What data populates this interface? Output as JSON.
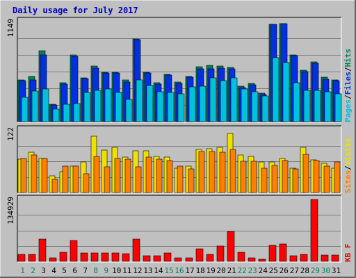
{
  "chart_data": [
    {
      "type": "bar",
      "title": "Daily usage for July 2017",
      "panel": "hits-files-pages",
      "categories": [
        "1",
        "2",
        "3",
        "4",
        "5",
        "6",
        "7",
        "8",
        "9",
        "10",
        "11",
        "12",
        "13",
        "14",
        "15",
        "16",
        "17",
        "18",
        "19",
        "20",
        "21",
        "22",
        "23",
        "24",
        "25",
        "26",
        "27",
        "28",
        "29",
        "30",
        "31"
      ],
      "ymax_label": "1149",
      "ylim": [
        0,
        1149
      ],
      "legend": [
        {
          "text": "Pages",
          "color": "#00c0e0"
        },
        {
          "text": "/",
          "color": "#000000"
        },
        {
          "text": "Files",
          "color": "#0030e0"
        },
        {
          "text": "/",
          "color": "#000000"
        },
        {
          "text": "Hits",
          "color": "#00805c"
        }
      ],
      "series": [
        {
          "name": "Hits",
          "color": "#00805c",
          "values": [
            480,
            515,
            815,
            200,
            450,
            765,
            505,
            640,
            565,
            565,
            480,
            947,
            568,
            448,
            545,
            455,
            520,
            630,
            645,
            640,
            620,
            410,
            438,
            325,
            1120,
            1125,
            768,
            590,
            686,
            510,
            480
          ]
        },
        {
          "name": "Files",
          "color": "#0030e0",
          "values": [
            468,
            480,
            765,
            188,
            430,
            750,
            492,
            613,
            557,
            555,
            455,
            938,
            558,
            432,
            535,
            440,
            508,
            610,
            605,
            615,
            610,
            394,
            425,
            315,
            1120,
            1125,
            758,
            575,
            670,
            490,
            470
          ]
        },
        {
          "name": "Pages",
          "color": "#00c0e0",
          "values": [
            278,
            350,
            372,
            140,
            200,
            208,
            332,
            362,
            379,
            339,
            254,
            475,
            417,
            347,
            332,
            320,
            398,
            410,
            500,
            473,
            505,
            373,
            340,
            296,
            732,
            680,
            450,
            358,
            357,
            343,
            320
          ]
        }
      ]
    },
    {
      "type": "bar",
      "panel": "visits-sites",
      "categories": [
        "1",
        "2",
        "3",
        "4",
        "5",
        "6",
        "7",
        "8",
        "9",
        "10",
        "11",
        "12",
        "13",
        "14",
        "15",
        "16",
        "17",
        "18",
        "19",
        "20",
        "21",
        "22",
        "23",
        "24",
        "25",
        "26",
        "27",
        "28",
        "29",
        "30",
        "31"
      ],
      "ymax_label": "122",
      "ylim": [
        0,
        122
      ],
      "legend": [
        {
          "text": "Sites",
          "color": "#ff8000"
        },
        {
          "text": "/",
          "color": "#000000"
        },
        {
          "text": "Visits",
          "color": "#f0e000"
        }
      ],
      "series": [
        {
          "name": "Visits",
          "color": "#f0e000",
          "values": [
            65,
            78,
            66,
            33,
            40,
            51,
            60,
            110,
            83,
            88,
            69,
            82,
            81,
            70,
            69,
            48,
            52,
            84,
            86,
            88,
            115,
            73,
            71,
            59,
            59,
            67,
            47,
            88,
            64,
            57,
            48
          ]
        },
        {
          "name": "Sites",
          "color": "#ff8000",
          "values": [
            66,
            73,
            66,
            26,
            51,
            51,
            37,
            70,
            50,
            66,
            65,
            50,
            69,
            65,
            62,
            51,
            46,
            80,
            80,
            78,
            84,
            61,
            61,
            48,
            53,
            63,
            46,
            75,
            62,
            51,
            60
          ]
        }
      ]
    },
    {
      "type": "bar",
      "panel": "kbytes",
      "categories": [
        "1",
        "2",
        "3",
        "4",
        "5",
        "6",
        "7",
        "8",
        "9",
        "10",
        "11",
        "12",
        "13",
        "14",
        "15",
        "16",
        "17",
        "18",
        "19",
        "20",
        "21",
        "22",
        "23",
        "24",
        "25",
        "26",
        "27",
        "28",
        "29",
        "30",
        "31"
      ],
      "ymax_label": "134929",
      "ylim": [
        0,
        134929
      ],
      "legend": [
        {
          "text": "KB F",
          "color": "#e00000"
        }
      ],
      "series": [
        {
          "name": "KB F",
          "color": "#ff0000",
          "values": [
            15000,
            15000,
            48000,
            7000,
            20000,
            45000,
            18000,
            18000,
            18000,
            18000,
            17000,
            49000,
            12000,
            12000,
            18000,
            7000,
            7000,
            28000,
            15000,
            33000,
            65000,
            20000,
            8000,
            5000,
            35000,
            38000,
            12000,
            15000,
            134929,
            13000,
            13000
          ]
        }
      ]
    }
  ],
  "x_axis": {
    "labels": [
      "1",
      "2",
      "3",
      "4",
      "5",
      "6",
      "7",
      "8",
      "9",
      "10",
      "11",
      "12",
      "13",
      "14",
      "15",
      "16",
      "17",
      "18",
      "19",
      "20",
      "21",
      "22",
      "23",
      "24",
      "25",
      "26",
      "27",
      "28",
      "29",
      "30",
      "31"
    ],
    "weekend_days": [
      "1",
      "2",
      "8",
      "9",
      "15",
      "16",
      "22",
      "23",
      "29",
      "30"
    ],
    "weekday_color": "#000000",
    "weekend_color": "#00805c"
  },
  "colors": {
    "background": "#c0c0c0",
    "plot_background": "#c0c0c0",
    "title": "#0000c0",
    "border_dark": "#000000",
    "border_light": "#ffffff",
    "gridline": "#7f7f7f"
  }
}
